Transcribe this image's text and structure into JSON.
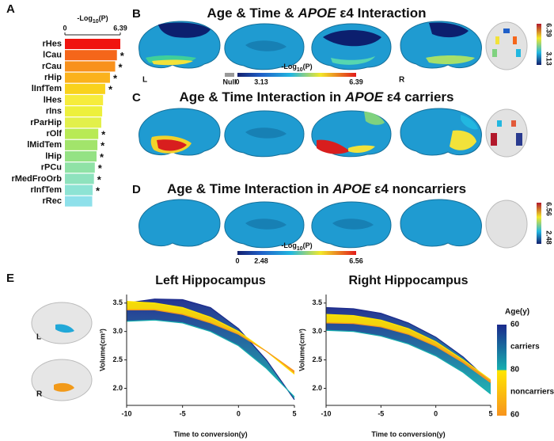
{
  "panel_labels": [
    "A",
    "B",
    "C",
    "D",
    "E"
  ],
  "brain_rows": [
    {
      "title": [
        "Age & Time & ",
        "APOE",
        " ε4 Interaction"
      ],
      "hemisphere_labels": [
        "L",
        "R"
      ],
      "colorbar": {
        "label": [
          "-Log",
          "10",
          "(P)"
        ],
        "ticks": [
          "Null",
          "0",
          "3.13",
          "6.39"
        ]
      },
      "side_colorbar": [
        "6.39",
        "3.13"
      ]
    },
    {
      "title": [
        "Age & Time Interaction in ",
        "APOE",
        " ε4 carriers"
      ]
    },
    {
      "title": [
        "Age & Time Interaction in ",
        "APOE",
        " ε4 noncarriers"
      ],
      "colorbar": {
        "label": [
          "-Log",
          "10",
          "(P)"
        ],
        "ticks": [
          "0",
          "2.48",
          "6.56"
        ]
      },
      "side_colorbar": [
        "6.56",
        "2.48"
      ]
    }
  ],
  "hippocampus_labels": [
    "L",
    "R"
  ],
  "age_legend": {
    "title": "Age(y)",
    "labels": [
      "60",
      "carriers",
      "80",
      "noncarriers",
      "60"
    ]
  },
  "chart_data": [
    {
      "type": "bar",
      "xlabel": [
        "-Log",
        "10",
        "(P)"
      ],
      "xlim": [
        0,
        6.39
      ],
      "xticks": [
        0,
        6.39
      ],
      "categories": [
        "rHes",
        "lCau",
        "rCau",
        "rHip",
        "lInfTem",
        "lHes",
        "rIns",
        "rParHip",
        "rOlf",
        "lMidTem",
        "lHip",
        "rPCu",
        "rMedFroOrb",
        "rInfTem",
        "rRec"
      ],
      "values": [
        6.39,
        6.0,
        5.8,
        5.2,
        4.65,
        4.4,
        4.3,
        4.2,
        3.85,
        3.75,
        3.65,
        3.45,
        3.35,
        3.2,
        3.15
      ],
      "colors": [
        "#f0140f",
        "#f5661a",
        "#f8911c",
        "#fbb21c",
        "#f9d21c",
        "#f6ec3c",
        "#edf03c",
        "#e2f04a",
        "#b8ea55",
        "#a2e46b",
        "#94e284",
        "#8fe2a6",
        "#8ee2bd",
        "#8de3d4",
        "#8ee0ea"
      ],
      "marker": "*",
      "significant": [
        false,
        true,
        true,
        true,
        true,
        false,
        false,
        false,
        true,
        true,
        true,
        true,
        true,
        true,
        false
      ]
    },
    {
      "type": "area",
      "title": "Left Hippocampus",
      "xlabel": "Time to conversion(y)",
      "ylabel": "Volume(cm³)",
      "xlim": [
        -10,
        5
      ],
      "xticks": [
        -10,
        -5,
        0,
        5
      ],
      "ylim": [
        1.7,
        3.65
      ],
      "yticks": [
        {
          "value": 2,
          "label": "2.0"
        },
        {
          "value": 2.5,
          "label": "2.5"
        },
        {
          "value": 3,
          "label": "3.0"
        },
        {
          "value": 3.5,
          "label": "3.5"
        }
      ],
      "x": [
        -10,
        -7.5,
        -5,
        -2.5,
        0,
        2.5,
        5
      ],
      "series": [
        {
          "name": "carriers",
          "colors": [
            "#1b2a8c",
            "#16b0b0"
          ],
          "values": [
            3.5,
            3.57,
            3.56,
            3.42,
            3.05,
            2.5,
            1.8
          ],
          "lower": [
            3.18,
            3.2,
            3.15,
            3.0,
            2.75,
            2.35,
            1.85
          ]
        },
        {
          "name": "noncarriers",
          "colors": [
            "#ffe600",
            "#f7941d"
          ],
          "values": [
            3.53,
            3.5,
            3.42,
            3.25,
            3.0,
            2.65,
            2.25
          ],
          "lower": [
            3.38,
            3.38,
            3.3,
            3.15,
            2.95,
            2.65,
            2.3
          ]
        }
      ]
    },
    {
      "type": "area",
      "title": "Right Hippocampus",
      "xlabel": "Time to conversion(y)",
      "ylabel": "Volume(cm³)",
      "xlim": [
        -10,
        5
      ],
      "xticks": [
        -10,
        -5,
        0,
        5
      ],
      "ylim": [
        1.7,
        3.65
      ],
      "yticks": [
        {
          "value": 2,
          "label": "2.0"
        },
        {
          "value": 2.5,
          "label": "2.5"
        },
        {
          "value": 3,
          "label": "3.0"
        },
        {
          "value": 3.5,
          "label": "3.5"
        }
      ],
      "x": [
        -10,
        -7.5,
        -5,
        -2.5,
        0,
        2.5,
        5
      ],
      "series": [
        {
          "name": "carriers",
          "colors": [
            "#1b2a8c",
            "#16b0b0"
          ],
          "values": [
            3.42,
            3.4,
            3.32,
            3.15,
            2.9,
            2.55,
            2.1
          ],
          "lower": [
            3.02,
            3.0,
            2.92,
            2.78,
            2.57,
            2.28,
            1.9
          ]
        },
        {
          "name": "noncarriers",
          "colors": [
            "#ffe600",
            "#f7941d"
          ],
          "values": [
            3.3,
            3.28,
            3.2,
            3.05,
            2.82,
            2.5,
            2.15
          ],
          "lower": [
            3.15,
            3.14,
            3.08,
            2.95,
            2.74,
            2.45,
            2.1
          ]
        }
      ]
    }
  ]
}
